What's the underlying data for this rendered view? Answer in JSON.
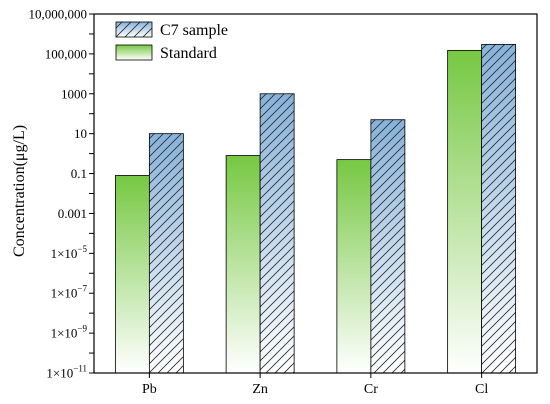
{
  "chart_data": {
    "type": "bar",
    "yscale": "log",
    "ylim": [
      1e-11,
      10000000.0
    ],
    "categories": [
      "Pb",
      "Zn",
      "Cr",
      "Cl"
    ],
    "series": [
      {
        "name": "Standard",
        "values": [
          0.08,
          0.8,
          0.5,
          150000
        ],
        "color": "#7ccb45",
        "fill": "gradient-green-to-white"
      },
      {
        "name": "C7 sample",
        "values": [
          10,
          1000,
          50,
          300000
        ],
        "color": "#8ab4d8",
        "fill": "gradient-blue-to-white-hatched"
      }
    ],
    "ylabel": "Concentration(μg/L)",
    "xlabel": "",
    "ytick_labels": [
      {
        "value": 10000000.0,
        "label": "10,000,000"
      },
      {
        "value": 100000.0,
        "label": "100,000"
      },
      {
        "value": 1000.0,
        "label": "1000"
      },
      {
        "value": 10.0,
        "label": "10"
      },
      {
        "value": 0.1,
        "label": "0.1"
      },
      {
        "value": 0.001,
        "label": "0.001"
      },
      {
        "value": 1e-05,
        "label": "1×10",
        "sup": "−5"
      },
      {
        "value": 1e-07,
        "label": "1×10",
        "sup": "−7"
      },
      {
        "value": 1e-09,
        "label": "1×10",
        "sup": "−9"
      },
      {
        "value": 1e-11,
        "label": "1×10",
        "sup": "−11"
      }
    ],
    "legend": {
      "position": "top-left",
      "entries": [
        "C7 sample",
        "Standard"
      ]
    },
    "grid": false
  }
}
